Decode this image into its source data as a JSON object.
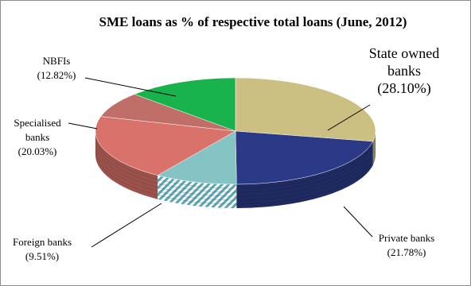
{
  "chart_data": {
    "type": "pie",
    "title": "SME loans as % of respective total loans (June, 2012)",
    "slices": [
      {
        "category": "State owned banks",
        "value": 28.1,
        "label": [
          "State owned",
          "banks",
          "(28.10%)"
        ],
        "color": "#cbbf82"
      },
      {
        "category": "Private banks",
        "value": 21.78,
        "label": [
          "Private banks",
          "(21.78%)"
        ],
        "color": "#2b3a86"
      },
      {
        "category": "Foreign banks",
        "value": 9.51,
        "label": [
          "Foreign banks",
          "(9.51%)"
        ],
        "color": "#86c3c4"
      },
      {
        "category": "Specialised banks",
        "value": 20.03,
        "label": [
          "Specialised",
          "banks",
          "(20.03%)"
        ],
        "color": "#d9726a"
      },
      {
        "category": "Other (unlabeled)",
        "value": 7.76,
        "label": [],
        "color": "#c06e68"
      },
      {
        "category": "NBFIs",
        "value": 12.82,
        "label": [
          "NBFIs",
          "(12.82%)"
        ],
        "color": "#19b34d"
      }
    ],
    "legend": "none"
  }
}
